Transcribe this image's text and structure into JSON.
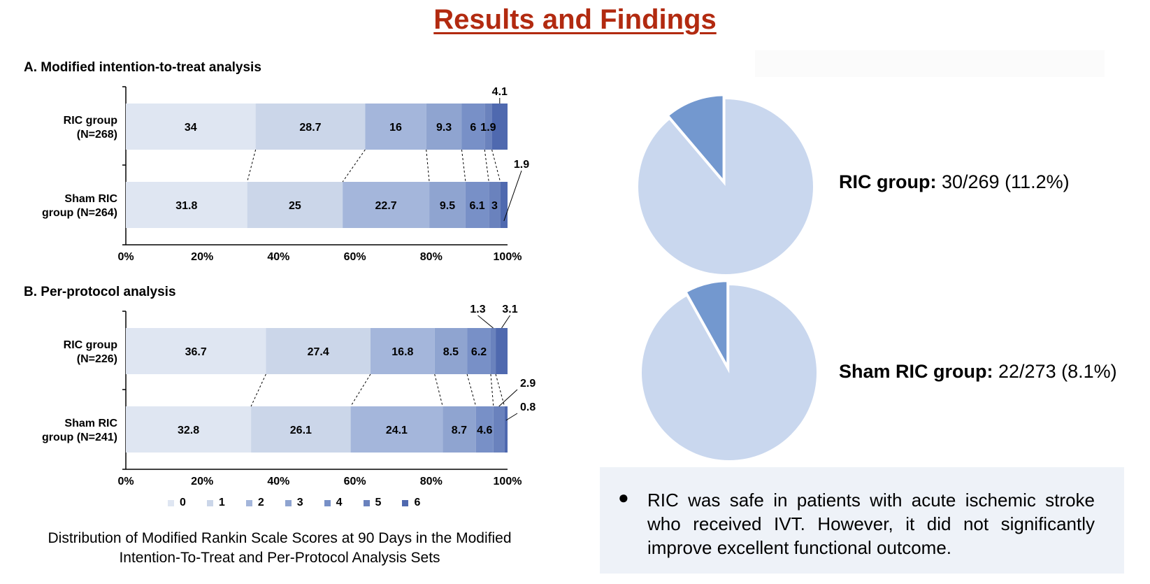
{
  "page": {
    "title": "Results and Findings"
  },
  "legend": {
    "items": [
      {
        "label": "0",
        "color": "#dfe6f2"
      },
      {
        "label": "1",
        "color": "#cbd6e9"
      },
      {
        "label": "2",
        "color": "#a4b6db"
      },
      {
        "label": "3",
        "color": "#8fa4d0"
      },
      {
        "label": "4",
        "color": "#7890c7"
      },
      {
        "label": "5",
        "color": "#6a82bd"
      },
      {
        "label": "6",
        "color": "#4f69af"
      }
    ]
  },
  "caption": "Distribution of Modified Rankin Scale Scores at 90 Days in the Modified Intention-To-Treat and Per-Protocol Analysis Sets",
  "findings": {
    "bullet": "●",
    "text": "RIC was safe in patients with acute ischemic stroke who received IVT. However, it did not significantly improve excellent functional outcome."
  },
  "pies": [
    {
      "label_bold": "RIC group:",
      "label_rest": " 30/269 (11.2%)",
      "value": 11.2
    },
    {
      "label_bold": "Sham RIC group:",
      "label_rest": " 22/273 (8.1%)",
      "value": 8.1
    }
  ],
  "pie_colors": {
    "main": "#c9d7ee",
    "slice": "#7398cf"
  },
  "chart_data": [
    {
      "type": "bar",
      "stacked": true,
      "orientation": "horizontal",
      "title": "A. Modified intention-to-treat analysis",
      "x_ticks": [
        "0%",
        "20%",
        "40%",
        "60%",
        "80%",
        "100%"
      ],
      "xlim": [
        0,
        100
      ],
      "series_names": [
        "0",
        "1",
        "2",
        "3",
        "4",
        "5",
        "6"
      ],
      "rows": [
        {
          "label": [
            "RIC group",
            "(N=268)"
          ],
          "values": [
            34,
            28.7,
            16,
            9.3,
            6,
            1.9,
            4.1
          ],
          "labels": [
            "34",
            "28.7",
            "16",
            "9.3",
            "6",
            "1.9",
            "4.1"
          ]
        },
        {
          "label": [
            "Sham RIC",
            "group (N=264)"
          ],
          "values": [
            31.8,
            25,
            22.7,
            9.5,
            6.1,
            3,
            1.9
          ],
          "labels": [
            "31.8",
            "25",
            "22.7",
            "9.5",
            "6.1",
            "3",
            "1.9"
          ]
        }
      ]
    },
    {
      "type": "bar",
      "stacked": true,
      "orientation": "horizontal",
      "title": "B. Per-protocol analysis",
      "x_ticks": [
        "0%",
        "20%",
        "40%",
        "60%",
        "80%",
        "100%"
      ],
      "xlim": [
        0,
        100
      ],
      "series_names": [
        "0",
        "1",
        "2",
        "3",
        "4",
        "5",
        "6"
      ],
      "rows": [
        {
          "label": [
            "RIC group",
            "(N=226)"
          ],
          "values": [
            36.7,
            27.4,
            16.8,
            8.5,
            6.2,
            1.3,
            3.1
          ],
          "labels": [
            "36.7",
            "27.4",
            "16.8",
            "8.5",
            "6.2",
            "1.3",
            "3.1"
          ]
        },
        {
          "label": [
            "Sham RIC",
            "group (N=241)"
          ],
          "values": [
            32.8,
            26.1,
            24.1,
            8.7,
            4.6,
            2.9,
            0.8
          ],
          "labels": [
            "32.8",
            "26.1",
            "24.1",
            "8.7",
            "4.6",
            "2.9",
            "0.8"
          ]
        }
      ]
    }
  ]
}
